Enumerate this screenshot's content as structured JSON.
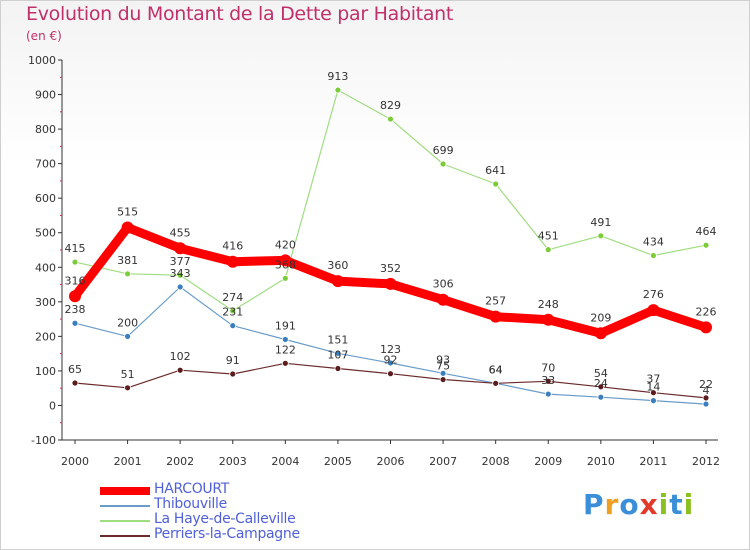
{
  "header": {
    "title": "Evolution du Montant de la Dette par Habitant",
    "subtitle": "(en €)"
  },
  "logo": {
    "text": "Proxiti",
    "colors": [
      "#3a8fd8",
      "#f0a020",
      "#3a8fd8",
      "#e23a2a",
      "#8cc020",
      "#3a8fd8",
      "#8cc020"
    ]
  },
  "chart_data": {
    "type": "line",
    "title": "Evolution du Montant de la Dette par Habitant",
    "subtitle": "(en €)",
    "xlabel": "",
    "ylabel": "",
    "x": [
      "2000",
      "2001",
      "2002",
      "2003",
      "2004",
      "2005",
      "2006",
      "2007",
      "2008",
      "2009",
      "2010",
      "2011",
      "2012"
    ],
    "ylim": [
      -100,
      1000
    ],
    "yticks": [
      -100,
      0,
      100,
      200,
      300,
      400,
      500,
      600,
      700,
      800,
      900,
      1000
    ],
    "grid": false,
    "legend": "bottom-left",
    "series": [
      {
        "name": "HARCOURT",
        "color": "#ff0000",
        "values": [
          316,
          515,
          455,
          416,
          420,
          360,
          352,
          306,
          257,
          248,
          209,
          276,
          226
        ]
      },
      {
        "name": "Thibouville",
        "color": "#6a9cc8",
        "values": [
          238,
          200,
          343,
          231,
          191,
          151,
          123,
          93,
          64,
          33,
          24,
          14,
          4
        ]
      },
      {
        "name": "La Haye-de-Calleville",
        "color": "#a0dd80",
        "values": [
          415,
          381,
          377,
          274,
          368,
          913,
          829,
          699,
          641,
          451,
          491,
          434,
          464
        ]
      },
      {
        "name": "Perriers-la-Campagne",
        "color": "#6b2c2c",
        "values": [
          65,
          51,
          102,
          91,
          122,
          107,
          92,
          75,
          64,
          70,
          54,
          37,
          22
        ]
      }
    ]
  }
}
